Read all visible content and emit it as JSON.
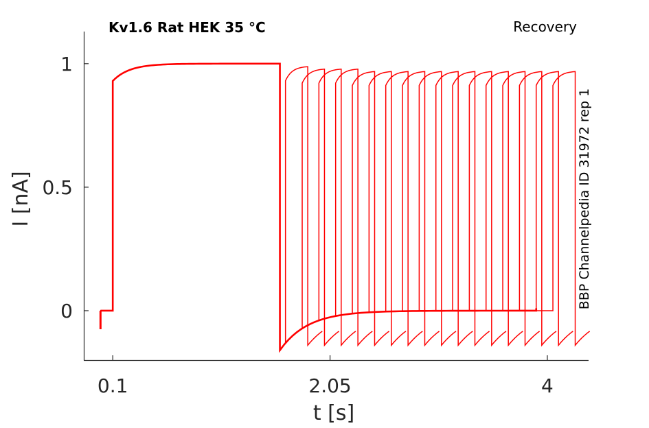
{
  "chart_data": {
    "type": "line",
    "title": "Kv1.6  Rat  HEK  35 °C",
    "annotation": "Recovery",
    "side_label": "BBP Channelpedia ID 31972 rep 1",
    "xlabel": "t [s]",
    "ylabel": "I [nA]",
    "xlim": [
      -0.16,
      4.37
    ],
    "ylim": [
      -0.2,
      1.13
    ],
    "xticks": [
      0.1,
      2.05,
      4
    ],
    "xtick_labels": [
      "0.1",
      "2.05",
      "4"
    ],
    "yticks": [
      0,
      0.5,
      1
    ],
    "ytick_labels": [
      "0",
      "0.5",
      "1"
    ],
    "grid": false,
    "line_color": "#ff0000",
    "conditioning_pulse": {
      "holding_start": -0.01,
      "onset": 0.1,
      "offset": 1.6,
      "initial_current": 0.93,
      "peak_current": 1.0,
      "holding_current": 0.0,
      "tail_current": -0.16
    },
    "recovery_intervals_s": [
      0.05,
      0.2,
      0.35,
      0.5,
      0.65,
      0.8,
      0.95,
      1.1,
      1.25,
      1.4,
      1.55,
      1.7,
      1.85,
      2.0,
      2.15,
      2.3,
      2.45
    ],
    "test_pulse_duration_s": 0.2,
    "test_pulse_peaks": [
      0.99,
      0.98,
      0.98,
      0.98,
      0.97,
      0.97,
      0.97,
      0.97,
      0.97,
      0.97,
      0.97,
      0.97,
      0.97,
      0.97,
      0.97,
      0.97,
      0.97
    ],
    "post_test_tail_current": -0.14
  }
}
